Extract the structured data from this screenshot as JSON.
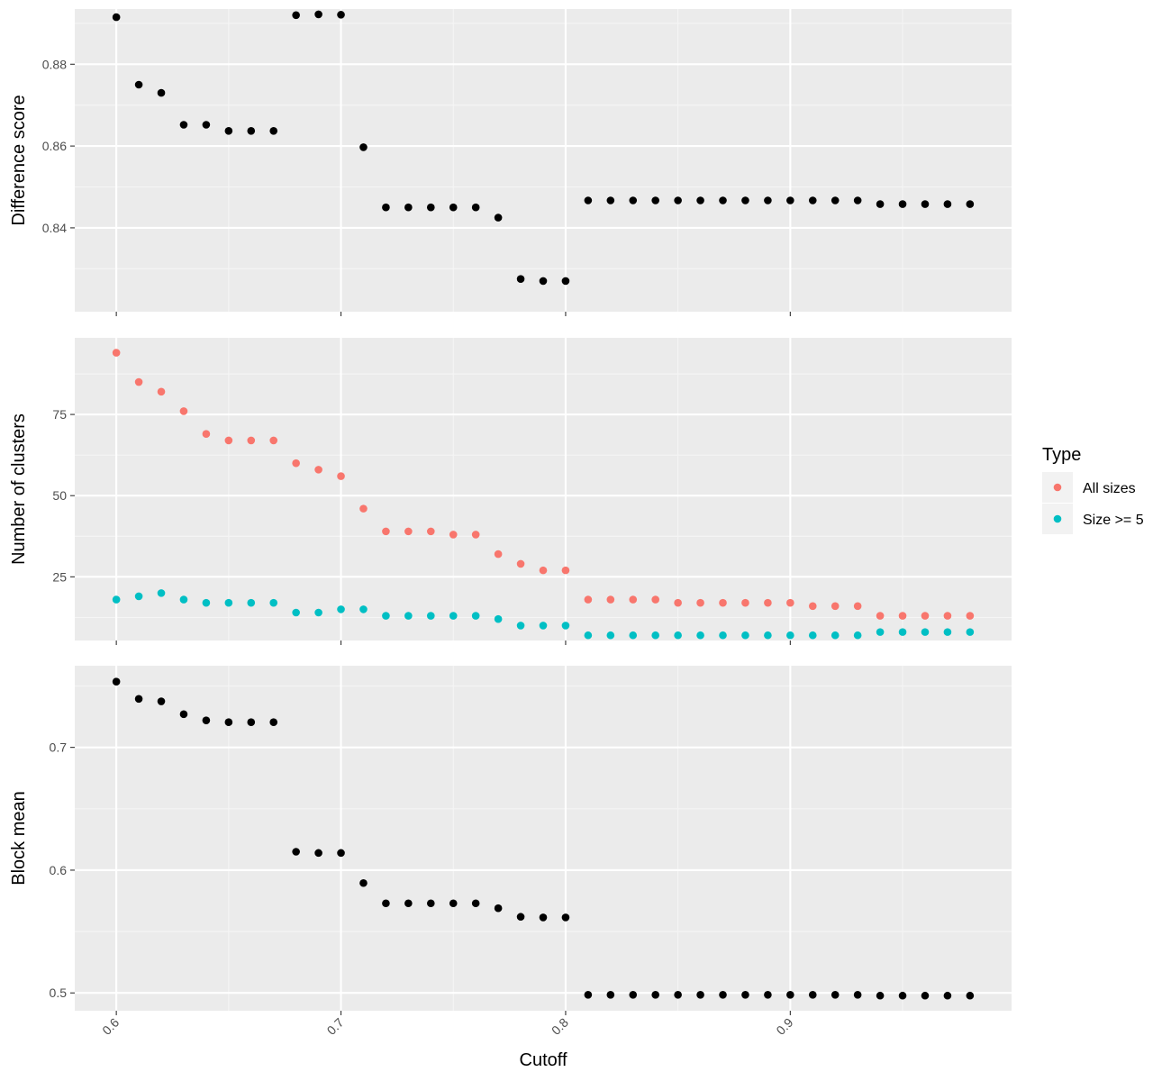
{
  "colors": {
    "panel_background": "#EBEBEB",
    "grid_major": "#FFFFFF",
    "grid_minor": "#F5F5F5",
    "tick": "#333333",
    "all_sizes": "#F8766D",
    "size_ge_5": "#00BFC4",
    "default_point": "#000000"
  },
  "x_axis": {
    "label": "Cutoff",
    "ticks": [
      0.6,
      0.7,
      0.8,
      0.9
    ],
    "tick_labels": [
      "0.6",
      "0.7",
      "0.8",
      "0.9"
    ],
    "range": [
      0.5815,
      0.9985
    ]
  },
  "legend": {
    "title": "Type",
    "entries": [
      "All sizes",
      "Size >= 5"
    ]
  },
  "chart_data": [
    {
      "type": "scatter",
      "ylabel": "Difference score",
      "ylim": [
        0.8195,
        0.8935
      ],
      "yticks": [
        0.84,
        0.86,
        0.88
      ],
      "ytick_labels": [
        "0.84",
        "0.86",
        "0.88"
      ],
      "x": [
        0.6,
        0.61,
        0.62,
        0.63,
        0.64,
        0.65,
        0.66,
        0.67,
        0.68,
        0.69,
        0.7,
        0.71,
        0.72,
        0.73,
        0.74,
        0.75,
        0.76,
        0.77,
        0.78,
        0.79,
        0.8,
        0.81,
        0.82,
        0.83,
        0.84,
        0.85,
        0.86,
        0.87,
        0.88,
        0.89,
        0.9,
        0.91,
        0.92,
        0.93,
        0.94,
        0.95,
        0.96,
        0.97,
        0.98
      ],
      "series": [
        {
          "values": [
            0.8915,
            0.875,
            0.873,
            0.8652,
            0.8652,
            0.8637,
            0.8637,
            0.8637,
            0.892,
            0.8922,
            0.8921,
            0.8597,
            0.845,
            0.845,
            0.845,
            0.845,
            0.845,
            0.8425,
            0.8275,
            0.827,
            0.827,
            0.8467,
            0.8467,
            0.8467,
            0.8467,
            0.8467,
            0.8467,
            0.8467,
            0.8467,
            0.8467,
            0.8467,
            0.8467,
            0.8467,
            0.8467,
            0.8458,
            0.8458,
            0.8458,
            0.8458,
            0.8458
          ]
        }
      ]
    },
    {
      "type": "scatter",
      "ylabel": "Number of clusters",
      "ylim": [
        5.4,
        98.6
      ],
      "yticks": [
        25,
        50,
        75
      ],
      "ytick_labels": [
        "25",
        "50",
        "75"
      ],
      "x": [
        0.6,
        0.61,
        0.62,
        0.63,
        0.64,
        0.65,
        0.66,
        0.67,
        0.68,
        0.69,
        0.7,
        0.71,
        0.72,
        0.73,
        0.74,
        0.75,
        0.76,
        0.77,
        0.78,
        0.79,
        0.8,
        0.81,
        0.82,
        0.83,
        0.84,
        0.85,
        0.86,
        0.87,
        0.88,
        0.89,
        0.9,
        0.91,
        0.92,
        0.93,
        0.94,
        0.95,
        0.96,
        0.97,
        0.98
      ],
      "series": [
        {
          "name": "All sizes",
          "values": [
            94,
            85,
            82,
            76,
            69,
            67,
            67,
            67,
            60,
            58,
            56,
            46,
            39,
            39,
            39,
            38,
            38,
            32,
            29,
            27,
            27,
            18,
            18,
            18,
            18,
            17,
            17,
            17,
            17,
            17,
            17,
            16,
            16,
            16,
            13,
            13,
            13,
            13,
            13
          ]
        },
        {
          "name": "Size >= 5",
          "values": [
            18,
            19,
            20,
            18,
            17,
            17,
            17,
            17,
            14,
            14,
            15,
            15,
            13,
            13,
            13,
            13,
            13,
            12,
            10,
            10,
            10,
            7,
            7,
            7,
            7,
            7,
            7,
            7,
            7,
            7,
            7,
            7,
            7,
            7,
            8,
            8,
            8,
            8,
            8
          ]
        }
      ]
    },
    {
      "type": "scatter",
      "ylabel": "Block mean",
      "ylim": [
        0.4855,
        0.7665
      ],
      "yticks": [
        0.5,
        0.6,
        0.7
      ],
      "ytick_labels": [
        "0.5",
        "0.6",
        "0.7"
      ],
      "x": [
        0.6,
        0.61,
        0.62,
        0.63,
        0.64,
        0.65,
        0.66,
        0.67,
        0.68,
        0.69,
        0.7,
        0.71,
        0.72,
        0.73,
        0.74,
        0.75,
        0.76,
        0.77,
        0.78,
        0.79,
        0.8,
        0.81,
        0.82,
        0.83,
        0.84,
        0.85,
        0.86,
        0.87,
        0.88,
        0.89,
        0.9,
        0.91,
        0.92,
        0.93,
        0.94,
        0.95,
        0.96,
        0.97,
        0.98
      ],
      "series": [
        {
          "values": [
            0.7535,
            0.7395,
            0.7375,
            0.727,
            0.722,
            0.7205,
            0.7205,
            0.7205,
            0.615,
            0.614,
            0.614,
            0.5895,
            0.573,
            0.573,
            0.573,
            0.573,
            0.573,
            0.569,
            0.562,
            0.5615,
            0.5615,
            0.4985,
            0.4985,
            0.4985,
            0.4985,
            0.4985,
            0.4985,
            0.4985,
            0.4985,
            0.4985,
            0.4985,
            0.4985,
            0.4985,
            0.4985,
            0.4978,
            0.4978,
            0.4978,
            0.4978,
            0.4978
          ]
        }
      ]
    }
  ]
}
